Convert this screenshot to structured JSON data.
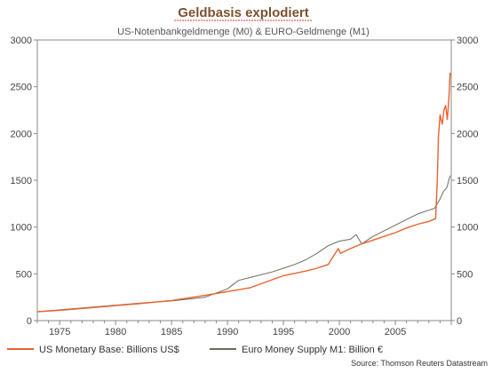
{
  "chart_data": {
    "type": "line",
    "title": "Geldbasis explodiert",
    "subtitle": "US-Notenbankgeldmenge (M0) & EURO-Geldmenge (M1)",
    "source": "Source: Thomson Reuters Datastream",
    "xlim": [
      1973,
      2010
    ],
    "ylim": [
      0,
      3000
    ],
    "xticks": [
      1975,
      1980,
      1985,
      1990,
      1995,
      2000,
      2005
    ],
    "yticks": [
      0,
      500,
      1000,
      1500,
      2000,
      2500,
      3000
    ],
    "grid": false,
    "legend_position": "bottom",
    "series": [
      {
        "name": "US Monetary Base: Billions US$",
        "color": "#e8632c",
        "x": [
          1973,
          1975,
          1978,
          1980,
          1982,
          1985,
          1988,
          1990,
          1992,
          1995,
          1997,
          1998,
          1999,
          1999.9,
          2000.1,
          2001,
          2002,
          2003,
          2004,
          2005,
          2006,
          2007,
          2008,
          2008.6,
          2008.75,
          2008.85,
          2009.0,
          2009.2,
          2009.35,
          2009.5,
          2009.65,
          2009.8,
          2009.9
        ],
        "y": [
          95,
          110,
          140,
          160,
          180,
          215,
          270,
          310,
          350,
          480,
          530,
          560,
          600,
          770,
          720,
          770,
          820,
          860,
          900,
          940,
          990,
          1030,
          1060,
          1090,
          1500,
          1950,
          2200,
          2100,
          2250,
          2300,
          2150,
          2400,
          2650
        ]
      },
      {
        "name": "Euro Money Supply M1: Billion €",
        "color": "#6b6b5e",
        "x": [
          1973,
          1975,
          1978,
          1980,
          1982,
          1985,
          1988,
          1990,
          1991,
          1992,
          1994,
          1995,
          1996,
          1997,
          1998,
          1999,
          2000,
          2001,
          2001.5,
          2002,
          2002.5,
          2003,
          2004,
          2005,
          2006,
          2007,
          2008,
          2008.5,
          2009.0,
          2009.3,
          2009.6,
          2009.9
        ],
        "y": [
          95,
          115,
          145,
          165,
          185,
          210,
          250,
          340,
          430,
          460,
          520,
          560,
          600,
          650,
          720,
          800,
          850,
          870,
          920,
          820,
          860,
          900,
          960,
          1020,
          1080,
          1140,
          1180,
          1200,
          1300,
          1380,
          1420,
          1550
        ]
      }
    ]
  }
}
